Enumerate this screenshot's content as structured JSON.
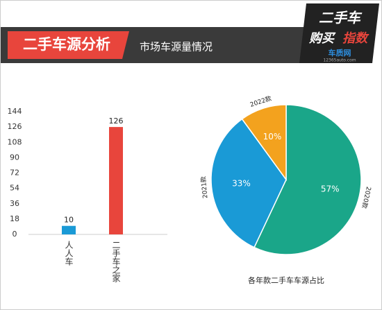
{
  "header": {
    "title": "二手车源分析",
    "subtitle": "市场车源量情况"
  },
  "logo": {
    "line1": "二手车",
    "line2a": "购买",
    "line2b": "指数",
    "brand": "车质网",
    "site": "12365auto.com"
  },
  "chart_data": [
    {
      "type": "bar",
      "categories": [
        "人人车",
        "二手车之家"
      ],
      "values": [
        10,
        126
      ],
      "colors": [
        "#1a9ad6",
        "#e8453c"
      ],
      "ylim": [
        0,
        144
      ],
      "yticks": [
        0,
        18,
        36,
        54,
        72,
        90,
        108,
        126,
        144
      ],
      "grid": false
    },
    {
      "type": "pie",
      "title": "各年款二手车车源占比",
      "categories": [
        "2020款",
        "2021款",
        "2022款"
      ],
      "values": [
        57,
        33,
        10
      ],
      "value_labels": [
        "57%",
        "33%",
        "10%"
      ],
      "colors": [
        "#1aa689",
        "#1a9ad6",
        "#f3a21e"
      ]
    }
  ]
}
